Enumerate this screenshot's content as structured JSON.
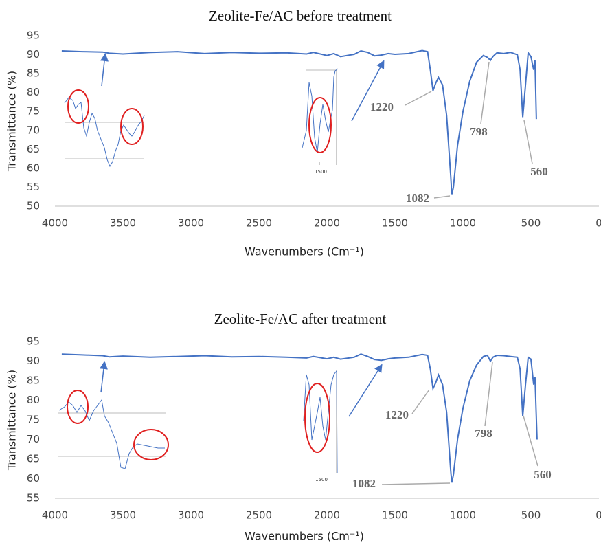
{
  "chart_data": [
    {
      "type": "line",
      "title": "Zeolite-Fe/AC before treatment",
      "xlabel": "Wavenumbers (Cm⁻¹)",
      "ylabel": "Transmittance (%)",
      "color": "#4472c4",
      "x": [
        3950,
        3800,
        3650,
        3600,
        3500,
        3300,
        3100,
        2900,
        2700,
        2500,
        2300,
        2150,
        2100,
        2000,
        1950,
        1900,
        1800,
        1750,
        1700,
        1650,
        1600,
        1550,
        1500,
        1400,
        1300,
        1260,
        1240,
        1220,
        1200,
        1180,
        1150,
        1120,
        1090,
        1082,
        1070,
        1040,
        1000,
        950,
        900,
        850,
        820,
        798,
        780,
        750,
        700,
        650,
        600,
        580,
        560,
        540,
        520,
        500,
        480,
        470,
        460
      ],
      "values": [
        91,
        90.8,
        90.7,
        90.4,
        90.2,
        90.6,
        90.8,
        90.3,
        90.6,
        90.4,
        90.5,
        90.2,
        90.6,
        89.8,
        90.3,
        89.5,
        90.1,
        91,
        90.6,
        89.7,
        89.9,
        90.3,
        90.1,
        90.3,
        91.1,
        90.8,
        86,
        80.5,
        82.5,
        84,
        82,
        74,
        58,
        53,
        55,
        66,
        75,
        83,
        88,
        89.8,
        89.3,
        88.5,
        89.5,
        90.5,
        90.3,
        90.6,
        90,
        86,
        73.5,
        82,
        90.5,
        89.5,
        86,
        88.5,
        73
      ],
      "xlim": [
        4000,
        0
      ],
      "xticks": [
        4000,
        3500,
        3000,
        2500,
        2000,
        1500,
        1000,
        500,
        0
      ],
      "ylim": [
        50,
        95
      ],
      "yticks": [
        50,
        55,
        60,
        65,
        70,
        75,
        80,
        85,
        90,
        95
      ],
      "annotations": [
        "1220",
        "798",
        "560",
        "1082"
      ],
      "inset_tick": "1500"
    },
    {
      "type": "line",
      "title": "Zeolite-Fe/AC after treatment",
      "xlabel": "Wavenumbers (Cm⁻¹)",
      "ylabel": "Transmittance (%)",
      "color": "#4472c4",
      "x": [
        3950,
        3800,
        3650,
        3600,
        3500,
        3300,
        3100,
        2900,
        2700,
        2500,
        2300,
        2150,
        2100,
        2000,
        1950,
        1900,
        1800,
        1750,
        1700,
        1650,
        1600,
        1550,
        1500,
        1400,
        1300,
        1260,
        1240,
        1220,
        1200,
        1180,
        1150,
        1120,
        1090,
        1082,
        1070,
        1040,
        1000,
        950,
        900,
        850,
        820,
        798,
        780,
        750,
        700,
        650,
        600,
        580,
        560,
        540,
        520,
        500,
        480,
        470,
        455
      ],
      "values": [
        91.8,
        91.6,
        91.4,
        91.1,
        91.3,
        91,
        91.2,
        91.4,
        91.1,
        91.2,
        91,
        90.8,
        91.2,
        90.6,
        91,
        90.5,
        91,
        91.8,
        91.2,
        90.4,
        90.2,
        90.6,
        90.8,
        91,
        91.7,
        91.5,
        88,
        83,
        84.5,
        86.5,
        84,
        77,
        62,
        59,
        61,
        70,
        78,
        85,
        89,
        91.2,
        91.5,
        90,
        91,
        91.5,
        91.4,
        91.2,
        91,
        88,
        76,
        84,
        91,
        90.5,
        84,
        86,
        70
      ],
      "xlim": [
        4000,
        0
      ],
      "xticks": [
        4000,
        3500,
        3000,
        2500,
        2000,
        1500,
        1000,
        500,
        0
      ],
      "ylim": [
        55,
        95
      ],
      "yticks": [
        55,
        60,
        65,
        70,
        75,
        80,
        85,
        90,
        95
      ],
      "annotations": [
        "1220",
        "798",
        "560",
        "1082"
      ],
      "inset_tick": "1500"
    }
  ]
}
